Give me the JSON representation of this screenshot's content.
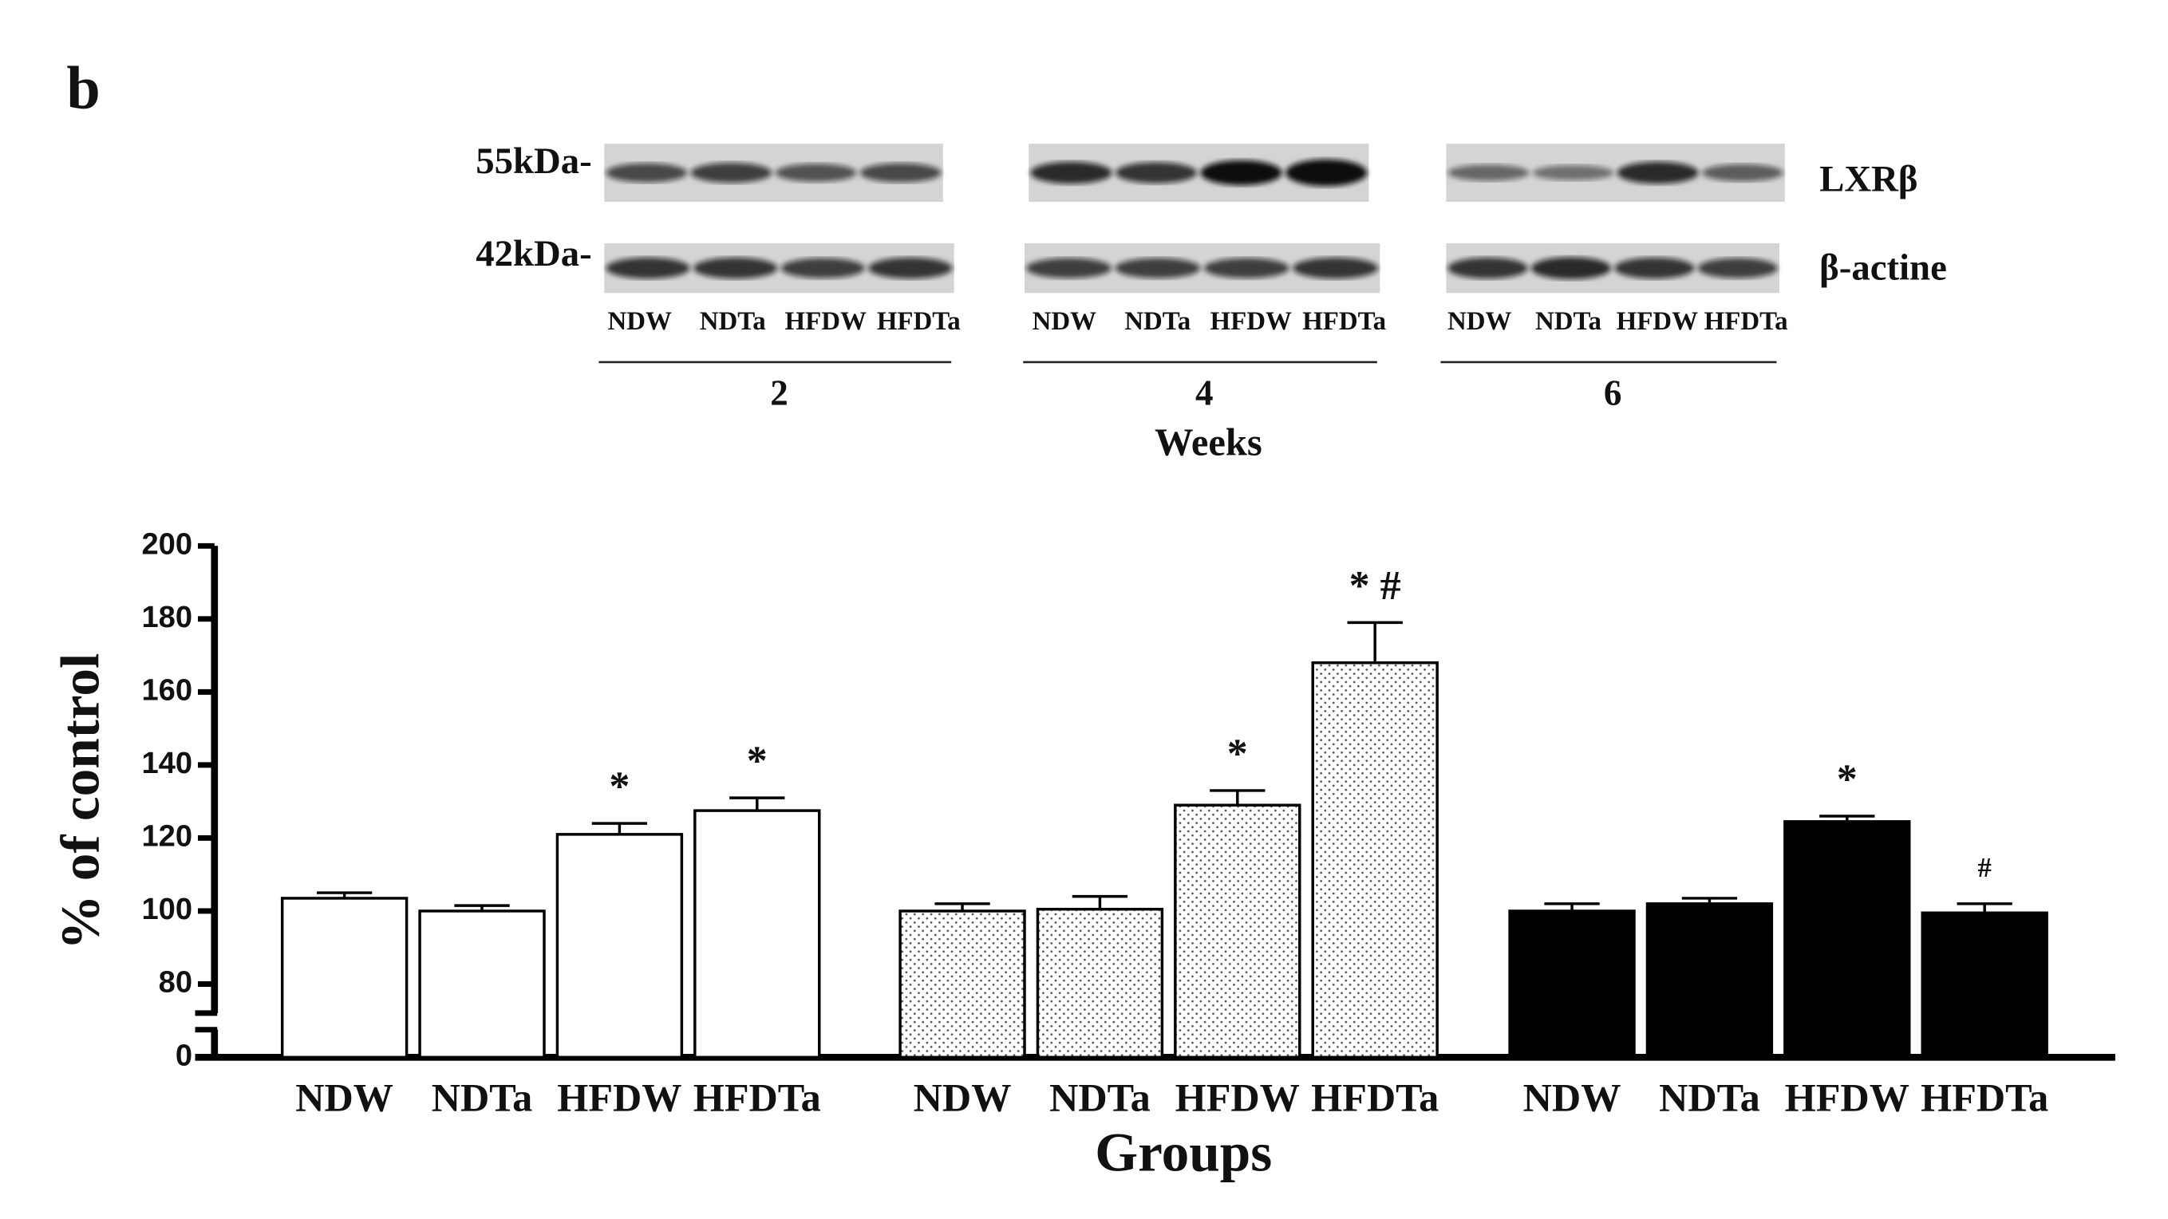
{
  "panel_label": "b",
  "blot": {
    "markers": [
      "55kDa-",
      "42kDa-"
    ],
    "proteins": [
      "LXRβ",
      "β-actine"
    ],
    "weeks": [
      {
        "label": "2",
        "lanes": [
          "NDW",
          "NDTa",
          "HFDW",
          "HFDTa"
        ]
      },
      {
        "label": "4",
        "lanes": [
          "NDW",
          "NDTa",
          "HFDW",
          "HFDTa"
        ]
      },
      {
        "label": "6",
        "lanes": [
          "NDW",
          "NDTa",
          "HFDW",
          "HFDTa"
        ]
      }
    ],
    "weeks_label": "Weeks"
  },
  "chart_data": {
    "type": "bar",
    "ylabel": "% of control",
    "xlabel": "Groups",
    "ylim": [
      0,
      200
    ],
    "yticks": [
      0,
      80,
      100,
      120,
      140,
      160,
      180,
      200
    ],
    "axis_break": true,
    "groups": [
      {
        "fill": "white",
        "categories": [
          "NDW",
          "NDTa",
          "HFDW",
          "HFDTa"
        ],
        "values": [
          103.5,
          100,
          121,
          127.5
        ],
        "errors": [
          1.5,
          1.5,
          3,
          3.5
        ],
        "annotations": [
          null,
          null,
          "*",
          "*"
        ]
      },
      {
        "fill": "dotted",
        "categories": [
          "NDW",
          "NDTa",
          "HFDW",
          "HFDTa"
        ],
        "values": [
          100,
          100.5,
          129,
          168
        ],
        "errors": [
          2,
          3.5,
          4,
          11
        ],
        "annotations": [
          null,
          null,
          "*",
          "* #"
        ]
      },
      {
        "fill": "black",
        "categories": [
          "NDW",
          "NDTa",
          "HFDW",
          "HFDTa"
        ],
        "values": [
          100,
          102,
          124.5,
          99.5
        ],
        "errors": [
          2,
          1.5,
          1.5,
          2.5
        ],
        "annotations": [
          null,
          null,
          "*",
          "#"
        ]
      }
    ]
  }
}
